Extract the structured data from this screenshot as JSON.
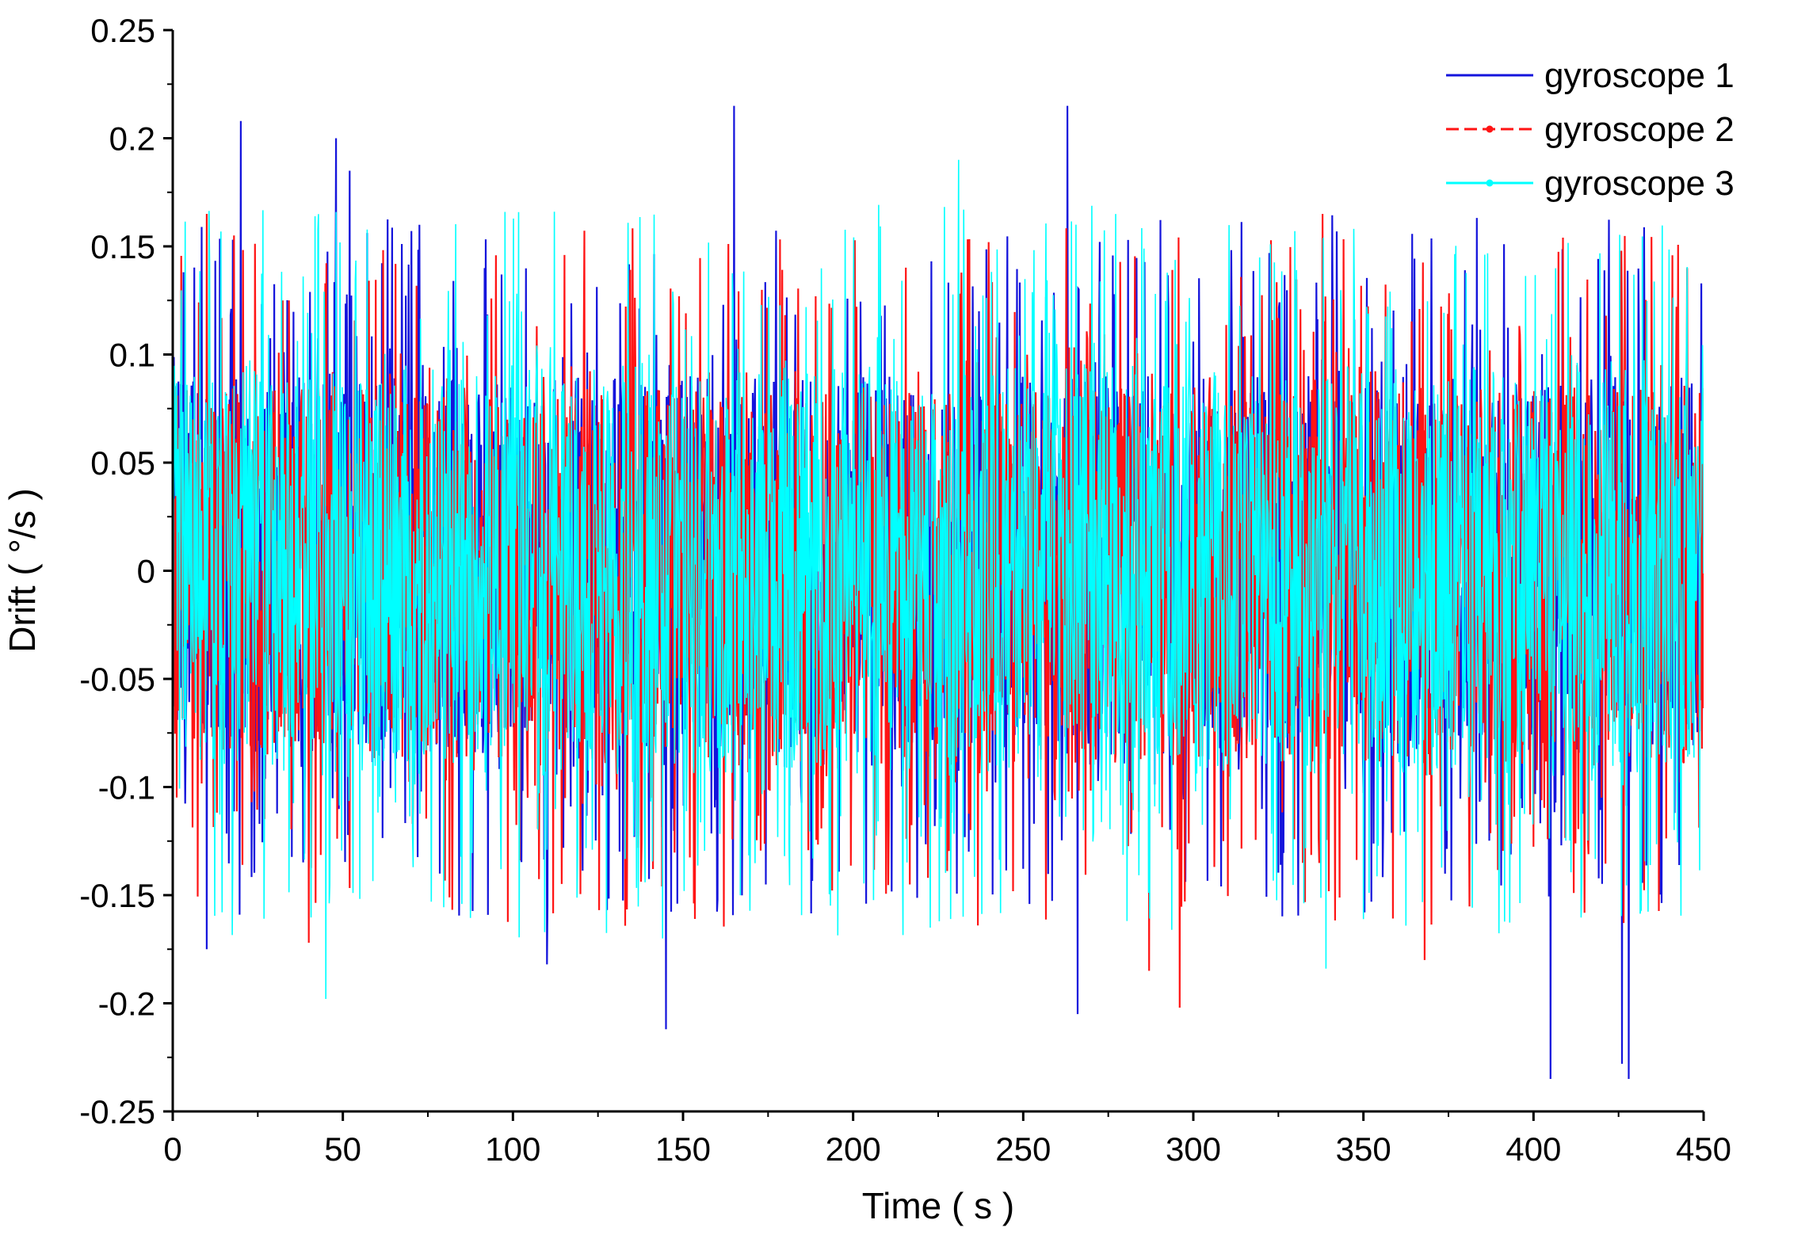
{
  "chart_data": {
    "type": "line",
    "title": "",
    "xlabel": "Time ( s )",
    "ylabel": "Drift ( °/s )",
    "xlim": [
      0,
      450
    ],
    "ylim": [
      -0.25,
      0.25
    ],
    "x_ticks": [
      0,
      50,
      100,
      150,
      200,
      250,
      300,
      350,
      400,
      450
    ],
    "x_tick_labels": [
      "0",
      "50",
      "100",
      "150",
      "200",
      "250",
      "300",
      "350",
      "400",
      "450"
    ],
    "y_ticks": [
      0.25,
      0.2,
      0.15,
      0.1,
      0.05,
      0,
      -0.05,
      -0.1,
      -0.15,
      -0.2,
      -0.25
    ],
    "y_tick_labels": [
      "0.25",
      "0.2",
      "0.15",
      "0.1",
      "0.05",
      "0",
      "-0.05",
      "-0.1",
      "-0.15",
      "-0.2",
      "-0.25"
    ],
    "grid": false,
    "legend_position": "top-right",
    "series": [
      {
        "name": "gyroscope 1",
        "color": "#1414dc",
        "line_style": "solid",
        "band": [
          -0.085,
          0.09
        ],
        "spikes": [
          [
            20,
            0.208
          ],
          [
            48,
            0.2
          ],
          [
            52,
            0.185
          ],
          [
            165,
            0.215
          ],
          [
            263,
            0.215
          ],
          [
            266,
            0.195
          ],
          [
            145,
            -0.212
          ],
          [
            266,
            -0.205
          ],
          [
            405,
            -0.235
          ],
          [
            426,
            -0.228
          ],
          [
            428,
            -0.235
          ],
          [
            110,
            -0.182
          ],
          [
            10,
            -0.175
          ]
        ]
      },
      {
        "name": "gyroscope 2",
        "color": "#ff1414",
        "line_style": "dashed with dot markers",
        "band": [
          -0.09,
          0.085
        ],
        "spikes": [
          [
            40,
            -0.172
          ],
          [
            296,
            -0.202
          ],
          [
            287,
            -0.185
          ],
          [
            368,
            -0.18
          ],
          [
            10,
            0.165
          ],
          [
            338,
            0.165
          ]
        ]
      },
      {
        "name": "gyroscope 3",
        "color": "#00ffff",
        "line_style": "solid with dot markers",
        "band": [
          -0.095,
          0.095
        ],
        "spikes": [
          [
            45,
            -0.198
          ],
          [
            231,
            0.19
          ],
          [
            339,
            -0.184
          ],
          [
            144,
            -0.17
          ]
        ]
      }
    ]
  }
}
